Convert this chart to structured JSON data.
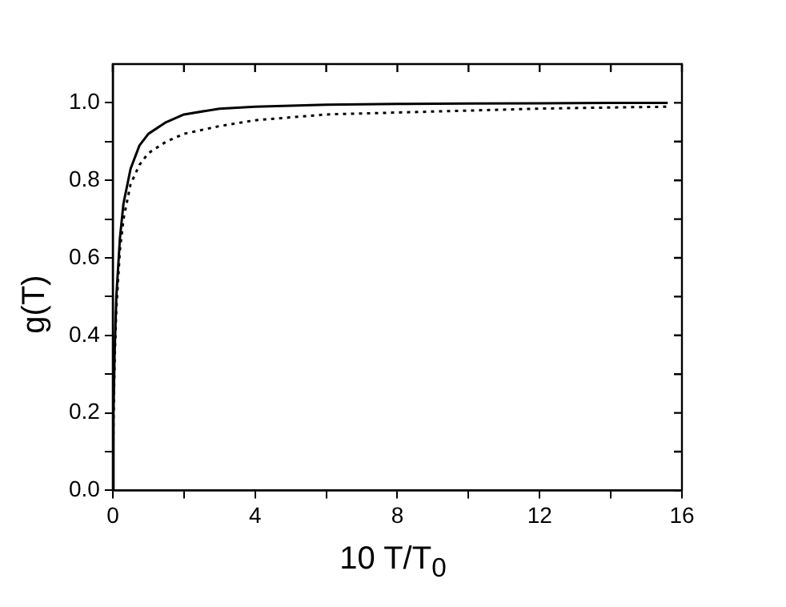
{
  "chart_data": {
    "type": "line",
    "xlabel": "10 T/T$_{0}$",
    "ylabel": "g(T)",
    "xlim": [
      0,
      16
    ],
    "ylim": [
      0,
      1.1
    ],
    "xticks": [
      0,
      {
        "value": 2,
        "label": null
      },
      4,
      {
        "value": 6,
        "label": null
      },
      8,
      {
        "value": 10,
        "label": null
      },
      12,
      {
        "value": 14,
        "label": null
      },
      16
    ],
    "yticks": [
      "0.0",
      {
        "value": 0.1,
        "label": null
      },
      {
        "value": 0.2,
        "label": "0.2"
      },
      {
        "value": 0.3,
        "label": null
      },
      {
        "value": 0.4,
        "label": "0.4"
      },
      {
        "value": 0.5,
        "label": null
      },
      {
        "value": 0.6,
        "label": "0.6"
      },
      {
        "value": 0.7,
        "label": null
      },
      {
        "value": 0.8,
        "label": "0.8"
      },
      {
        "value": 0.9,
        "label": null
      },
      {
        "value": 1.0,
        "label": "1.0"
      }
    ],
    "grid": false,
    "legend": false,
    "marker": "none",
    "series": [
      {
        "color": "#000000",
        "line_style": "solid",
        "x": [
          0,
          0.02,
          0.05,
          0.1,
          0.2,
          0.3,
          0.5,
          0.75,
          1,
          1.5,
          2,
          3,
          4,
          6,
          8,
          10,
          12,
          14,
          15.6
        ],
        "values": [
          0,
          0.2,
          0.35,
          0.5,
          0.65,
          0.74,
          0.83,
          0.89,
          0.92,
          0.95,
          0.97,
          0.985,
          0.99,
          0.995,
          0.997,
          0.998,
          0.999,
          1.0,
          1.0
        ]
      },
      {
        "color": "#000000",
        "line_style": "dotted",
        "x": [
          0,
          0.02,
          0.05,
          0.1,
          0.2,
          0.3,
          0.5,
          0.75,
          1,
          1.5,
          2,
          3,
          4,
          6,
          8,
          10,
          12,
          14,
          15.6
        ],
        "values": [
          0,
          0.18,
          0.33,
          0.47,
          0.62,
          0.7,
          0.79,
          0.84,
          0.87,
          0.9,
          0.92,
          0.94,
          0.955,
          0.97,
          0.975,
          0.98,
          0.985,
          0.988,
          0.99
        ]
      }
    ]
  }
}
